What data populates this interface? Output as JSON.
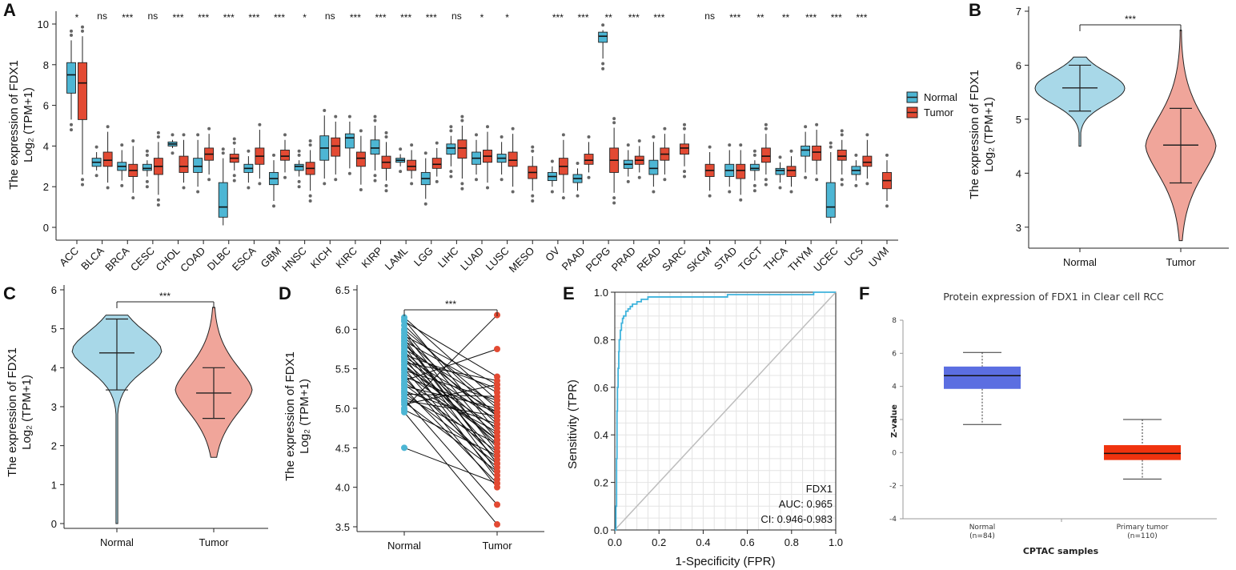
{
  "colors": {
    "normal": "#4db6d4",
    "tumor": "#e34a33",
    "normal_violin": "#a8d8e8",
    "tumor_violin": "#f0a59a",
    "roc": "#3fb3dc",
    "prot_normal": "#5b6ee1",
    "prot_tumor": "#f0330e"
  },
  "panels": {
    "a": "A",
    "b": "B",
    "c": "C",
    "d": "D",
    "e": "E",
    "f": "F"
  },
  "chart_data": [
    {
      "id": "A",
      "type": "box",
      "title": "",
      "ylabel_line1": "The expression of FDX1",
      "ylabel_line2": "Log₂ (TPM+1)",
      "ylim": [
        0,
        10
      ],
      "yticks": [
        0,
        2,
        4,
        6,
        8,
        10
      ],
      "legend": [
        {
          "name": "Normal",
          "color": "#4db6d4"
        },
        {
          "name": "Tumor",
          "color": "#e34a33"
        }
      ],
      "legend_position": "right",
      "categories": [
        {
          "name": "ACC",
          "sig": "*",
          "normal": [
            5.3,
            6.6,
            7.5,
            8.1,
            9.2
          ],
          "tumor": [
            2.6,
            5.3,
            7.1,
            8.1,
            9.4
          ]
        },
        {
          "name": "BLCA",
          "sig": "ns",
          "normal": [
            2.8,
            3.0,
            3.2,
            3.4,
            3.7
          ],
          "tumor": [
            2.2,
            3.0,
            3.3,
            3.7,
            4.7
          ]
        },
        {
          "name": "BRCA",
          "sig": "***",
          "normal": [
            2.3,
            2.8,
            3.0,
            3.2,
            3.8
          ],
          "tumor": [
            1.7,
            2.5,
            2.8,
            3.1,
            4.0
          ]
        },
        {
          "name": "CESC",
          "sig": "ns",
          "normal": [
            2.5,
            2.8,
            2.9,
            3.1,
            3.3
          ],
          "tumor": [
            1.6,
            2.6,
            3.0,
            3.4,
            4.2
          ]
        },
        {
          "name": "CHOL",
          "sig": "***",
          "normal": [
            3.9,
            4.0,
            4.1,
            4.2,
            4.3
          ],
          "tumor": [
            2.2,
            2.7,
            3.0,
            3.5,
            4.3
          ]
        },
        {
          "name": "COAD",
          "sig": "***",
          "normal": [
            2.0,
            2.7,
            3.0,
            3.4,
            4.3
          ],
          "tumor": [
            2.6,
            3.3,
            3.6,
            3.9,
            4.6
          ]
        },
        {
          "name": "DLBC",
          "sig": "***",
          "normal": [
            0.1,
            0.5,
            1.0,
            2.2,
            3.4
          ],
          "tumor": [
            2.8,
            3.2,
            3.4,
            3.6,
            3.9
          ]
        },
        {
          "name": "ESCA",
          "sig": "***",
          "normal": [
            2.2,
            2.7,
            2.9,
            3.1,
            3.5
          ],
          "tumor": [
            2.4,
            3.1,
            3.5,
            3.9,
            4.8
          ]
        },
        {
          "name": "GBM",
          "sig": "***",
          "normal": [
            1.3,
            2.1,
            2.4,
            2.7,
            3.3
          ],
          "tumor": [
            2.7,
            3.3,
            3.5,
            3.8,
            4.3
          ]
        },
        {
          "name": "HNSC",
          "sig": "*",
          "normal": [
            2.5,
            2.8,
            3.0,
            3.1,
            3.3
          ],
          "tumor": [
            1.8,
            2.6,
            2.9,
            3.2,
            3.8
          ]
        },
        {
          "name": "KICH",
          "sig": "ns",
          "normal": [
            2.4,
            3.3,
            3.9,
            4.5,
            5.5
          ],
          "tumor": [
            2.6,
            3.5,
            4.0,
            4.4,
            5.2
          ]
        },
        {
          "name": "KIRC",
          "sig": "***",
          "normal": [
            2.9,
            3.9,
            4.4,
            4.6,
            5.2
          ],
          "tumor": [
            2.1,
            3.0,
            3.4,
            3.7,
            4.5
          ]
        },
        {
          "name": "KIRP",
          "sig": "***",
          "normal": [
            2.8,
            3.6,
            3.9,
            4.3,
            5.0
          ],
          "tumor": [
            2.3,
            2.9,
            3.2,
            3.5,
            4.2
          ]
        },
        {
          "name": "LAML",
          "sig": "***",
          "normal": [
            3.0,
            3.2,
            3.3,
            3.4,
            3.6
          ],
          "tumor": [
            2.4,
            2.8,
            3.0,
            3.3,
            3.8
          ]
        },
        {
          "name": "LGG",
          "sig": "***",
          "normal": [
            1.4,
            2.1,
            2.4,
            2.7,
            3.4
          ],
          "tumor": [
            2.5,
            2.9,
            3.1,
            3.4,
            3.9
          ]
        },
        {
          "name": "LIHC",
          "sig": "ns",
          "normal": [
            3.0,
            3.6,
            3.9,
            4.1,
            4.5
          ],
          "tumor": [
            2.4,
            3.4,
            3.9,
            4.3,
            5.0
          ]
        },
        {
          "name": "LUAD",
          "sig": "*",
          "normal": [
            2.6,
            3.1,
            3.4,
            3.7,
            4.3
          ],
          "tumor": [
            2.2,
            3.2,
            3.5,
            3.8,
            4.7
          ]
        },
        {
          "name": "LUSC",
          "sig": "*",
          "normal": [
            2.6,
            3.2,
            3.4,
            3.6,
            4.2
          ],
          "tumor": [
            2.0,
            3.0,
            3.3,
            3.7,
            4.6
          ]
        },
        {
          "name": "MESO",
          "sig": "",
          "normal": null,
          "tumor": [
            1.8,
            2.4,
            2.7,
            3.0,
            3.5
          ]
        },
        {
          "name": "OV",
          "sig": "***",
          "normal": [
            2.0,
            2.3,
            2.5,
            2.7,
            3.0
          ],
          "tumor": [
            1.7,
            2.6,
            3.0,
            3.4,
            4.3
          ]
        },
        {
          "name": "PAAD",
          "sig": "***",
          "normal": [
            1.8,
            2.2,
            2.4,
            2.6,
            2.9
          ],
          "tumor": [
            2.7,
            3.1,
            3.3,
            3.6,
            4.2
          ]
        },
        {
          "name": "PCPG",
          "sig": "**",
          "normal": [
            8.3,
            9.1,
            9.4,
            9.6,
            9.7
          ],
          "tumor": [
            1.7,
            2.7,
            3.3,
            3.9,
            4.9
          ]
        },
        {
          "name": "PRAD",
          "sig": "***",
          "normal": [
            2.5,
            2.9,
            3.1,
            3.3,
            3.8
          ],
          "tumor": [
            2.7,
            3.1,
            3.3,
            3.5,
            4.0
          ]
        },
        {
          "name": "READ",
          "sig": "***",
          "normal": [
            2.0,
            2.6,
            2.9,
            3.3,
            4.2
          ],
          "tumor": [
            2.6,
            3.3,
            3.6,
            3.9,
            4.6
          ]
        },
        {
          "name": "SARC",
          "sig": "",
          "normal": null,
          "tumor": [
            3.0,
            3.6,
            3.9,
            4.1,
            4.6
          ]
        },
        {
          "name": "SKCM",
          "sig": "ns",
          "normal": null,
          "tumor": [
            1.8,
            2.5,
            2.8,
            3.1,
            3.7
          ]
        },
        {
          "name": "STAD",
          "sig": "***",
          "normal": [
            2.0,
            2.5,
            2.8,
            3.1,
            3.8
          ],
          "tumor": [
            1.6,
            2.4,
            2.8,
            3.1,
            3.8
          ]
        },
        {
          "name": "TGCT",
          "sig": "**",
          "normal": [
            2.3,
            2.8,
            2.9,
            3.1,
            3.3
          ],
          "tumor": [
            2.6,
            3.2,
            3.5,
            3.9,
            4.6
          ]
        },
        {
          "name": "THCA",
          "sig": "**",
          "normal": [
            2.2,
            2.6,
            2.8,
            2.9,
            3.2
          ],
          "tumor": [
            2.0,
            2.5,
            2.8,
            3.0,
            3.5
          ]
        },
        {
          "name": "THYM",
          "sig": "***",
          "normal": [
            2.7,
            3.5,
            3.8,
            4.0,
            4.7
          ],
          "tumor": [
            2.6,
            3.3,
            3.7,
            4.0,
            4.8
          ]
        },
        {
          "name": "UCEC",
          "sig": "***",
          "normal": [
            0.2,
            0.5,
            1.0,
            2.2,
            3.7
          ],
          "tumor": [
            2.6,
            3.3,
            3.5,
            3.8,
            4.3
          ]
        },
        {
          "name": "UCS",
          "sig": "***",
          "normal": [
            2.3,
            2.6,
            2.8,
            3.0,
            3.3
          ],
          "tumor": [
            2.4,
            3.0,
            3.2,
            3.5,
            4.3
          ]
        },
        {
          "name": "UVM",
          "sig": "",
          "normal": null,
          "tumor": [
            1.3,
            1.9,
            2.3,
            2.7,
            3.3
          ]
        }
      ]
    },
    {
      "id": "B",
      "type": "violin",
      "ylabel_line1": "The expression of FDX1",
      "ylabel_line2": "Log₂ (TPM+1)",
      "ylim": [
        2.7,
        7.0
      ],
      "yticks": [
        3,
        4,
        5,
        6,
        7
      ],
      "categories": [
        "Normal",
        "Tumor"
      ],
      "sig": "***",
      "groups": [
        {
          "name": "Normal",
          "min": 4.5,
          "max": 6.15,
          "median": 5.58,
          "low": 5.15,
          "high": 6.0
        },
        {
          "name": "Tumor",
          "min": 2.75,
          "max": 6.65,
          "median": 4.52,
          "low": 3.82,
          "high": 5.2
        }
      ]
    },
    {
      "id": "C",
      "type": "violin",
      "ylabel_line1": "The expression of FDX1",
      "ylabel_line2": "Log₂ (TPM+1)",
      "ylim": [
        0,
        6
      ],
      "yticks": [
        0,
        1,
        2,
        3,
        4,
        5,
        6
      ],
      "categories": [
        "Normal",
        "Tumor"
      ],
      "sig": "***",
      "groups": [
        {
          "name": "Normal",
          "min": 0.0,
          "max": 5.35,
          "median": 4.38,
          "low": 3.43,
          "high": 5.25
        },
        {
          "name": "Tumor",
          "min": 1.7,
          "max": 5.55,
          "median": 3.35,
          "low": 2.7,
          "high": 4.0
        }
      ]
    },
    {
      "id": "D",
      "type": "paired_scatter",
      "ylabel_line1": "The expression of FDX1",
      "ylabel_line2": "Log₂ (TPM+1)",
      "ylim": [
        3.5,
        6.5
      ],
      "yticks": [
        "3.5",
        "4.0",
        "4.5",
        "5.0",
        "5.5",
        "6.0",
        "6.5"
      ],
      "categories": [
        "Normal",
        "Tumor"
      ],
      "sig": "***",
      "pairs": [
        [
          6.15,
          5.1
        ],
        [
          6.12,
          4.7
        ],
        [
          6.1,
          5.4
        ],
        [
          6.05,
          4.9
        ],
        [
          6.0,
          5.0
        ],
        [
          5.98,
          4.6
        ],
        [
          5.95,
          4.45
        ],
        [
          5.92,
          5.3
        ],
        [
          5.9,
          4.8
        ],
        [
          5.88,
          4.3
        ],
        [
          5.85,
          5.2
        ],
        [
          5.82,
          4.5
        ],
        [
          5.8,
          4.9
        ],
        [
          5.78,
          4.2
        ],
        [
          5.75,
          5.05
        ],
        [
          5.72,
          4.65
        ],
        [
          5.7,
          4.4
        ],
        [
          5.68,
          5.25
        ],
        [
          5.65,
          4.1
        ],
        [
          5.62,
          4.85
        ],
        [
          5.6,
          4.55
        ],
        [
          5.58,
          5.35
        ],
        [
          5.55,
          4.35
        ],
        [
          5.52,
          4.75
        ],
        [
          5.5,
          4.15
        ],
        [
          5.48,
          5.1
        ],
        [
          5.45,
          4.6
        ],
        [
          5.42,
          4.0
        ],
        [
          5.4,
          4.95
        ],
        [
          5.38,
          4.25
        ],
        [
          5.35,
          5.75
        ],
        [
          5.32,
          4.7
        ],
        [
          5.3,
          4.45
        ],
        [
          5.28,
          5.0
        ],
        [
          5.25,
          4.05
        ],
        [
          5.22,
          4.8
        ],
        [
          5.2,
          4.3
        ],
        [
          5.18,
          5.15
        ],
        [
          5.15,
          4.55
        ],
        [
          5.12,
          3.78
        ],
        [
          5.1,
          4.9
        ],
        [
          5.08,
          4.2
        ],
        [
          5.05,
          5.3
        ],
        [
          5.0,
          6.18
        ],
        [
          4.98,
          4.4
        ],
        [
          4.95,
          3.53
        ],
        [
          4.5,
          4.05
        ],
        [
          5.55,
          4.6
        ],
        [
          5.65,
          4.95
        ],
        [
          5.85,
          4.3
        ]
      ]
    },
    {
      "id": "E",
      "type": "line",
      "xlabel": "1-Specificity (FPR)",
      "ylabel": "Sensitivity (TPR)",
      "xlim": [
        0,
        1
      ],
      "ylim": [
        0,
        1
      ],
      "xticks": [
        "0.0",
        "0.2",
        "0.4",
        "0.6",
        "0.8",
        "1.0"
      ],
      "yticks": [
        "0.0",
        "0.2",
        "0.4",
        "0.6",
        "0.8",
        "1.0"
      ],
      "grid": true,
      "roc_x": [
        0,
        0.005,
        0.008,
        0.01,
        0.012,
        0.015,
        0.018,
        0.02,
        0.025,
        0.03,
        0.035,
        0.04,
        0.05,
        0.06,
        0.07,
        0.08,
        0.1,
        0.12,
        0.15,
        0.2,
        0.3,
        0.5,
        0.51,
        0.7,
        0.9,
        1.0
      ],
      "roc_y": [
        0,
        0.1,
        0.3,
        0.5,
        0.6,
        0.68,
        0.75,
        0.8,
        0.84,
        0.87,
        0.89,
        0.9,
        0.92,
        0.93,
        0.94,
        0.95,
        0.96,
        0.97,
        0.98,
        0.98,
        0.98,
        0.98,
        0.99,
        0.99,
        1.0,
        1.0
      ],
      "annotation": {
        "name": "FDX1",
        "auc": "AUC: 0.965",
        "ci": "CI: 0.946-0.983"
      }
    },
    {
      "id": "F",
      "type": "box",
      "title": "Protein expression of FDX1 in Clear cell RCC",
      "xlabel": "CPTAC samples",
      "ylabel": "Z-value",
      "ylim": [
        -4,
        8
      ],
      "yticks": [
        -4,
        -2,
        0,
        2,
        4,
        6,
        8
      ],
      "groups": [
        {
          "name": "Normal",
          "n": "(n=84)",
          "whisker_low": 1.7,
          "q1": 3.85,
          "median": 4.65,
          "q3": 5.2,
          "whisker_high": 6.05
        },
        {
          "name": "Primary tumor",
          "n": "(n=110)",
          "whisker_low": -1.6,
          "q1": -0.45,
          "median": -0.05,
          "q3": 0.45,
          "whisker_high": 2.0
        }
      ]
    }
  ]
}
